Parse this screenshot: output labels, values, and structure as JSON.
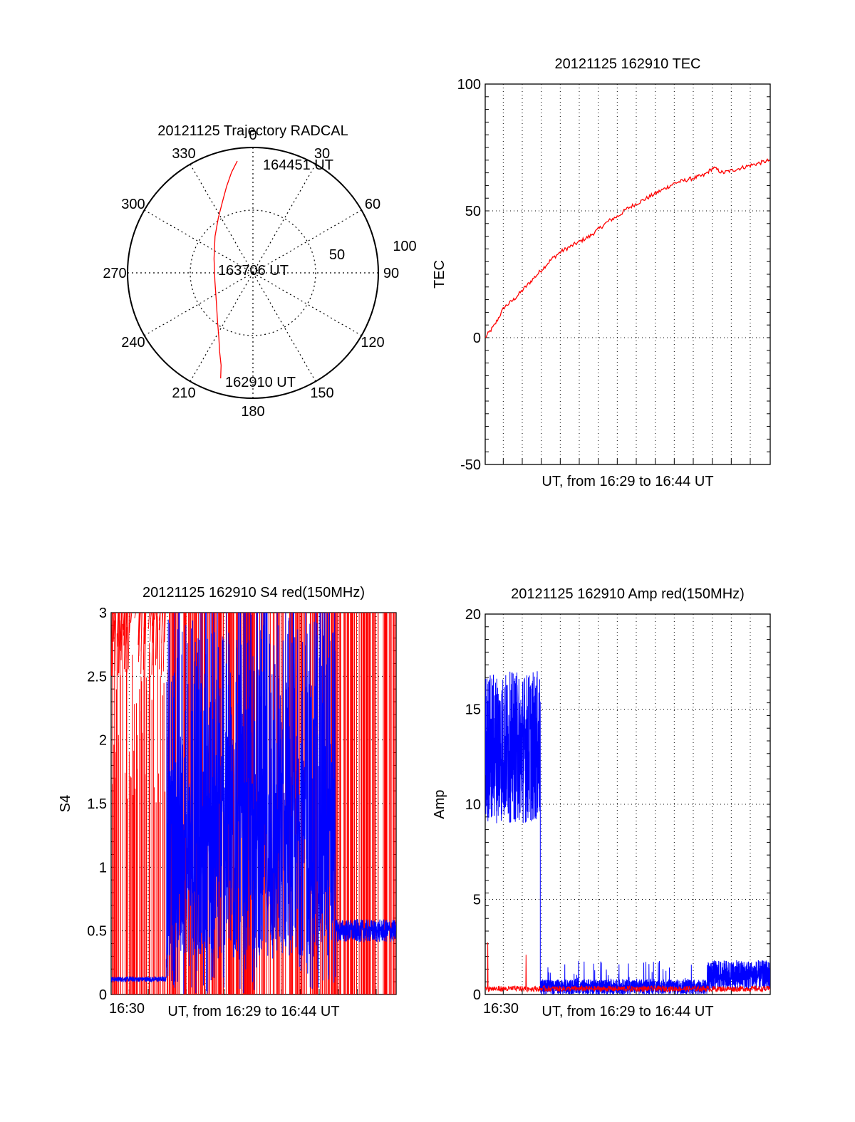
{
  "colors": {
    "axis": "#000000",
    "grid": "#000000",
    "red": "#ff0000",
    "blue": "#0000ff",
    "background": "#ffffff"
  },
  "chart_data": [
    {
      "id": "trajectory",
      "type": "polar",
      "title": "20121125 Trajectory RADCAL",
      "angle_labels": [
        "0",
        "30",
        "60",
        "90",
        "120",
        "150",
        "180",
        "210",
        "240",
        "270",
        "300",
        "330"
      ],
      "radial_tick_labels": [
        "50",
        "100"
      ],
      "radial_range": [
        0,
        100
      ],
      "grid": true,
      "annotations": [
        "164451 UT",
        "163706 UT",
        "162910 UT"
      ],
      "series": [
        {
          "color": "red",
          "points": [
            {
              "az": 197,
              "r": 88
            },
            {
              "az": 199,
              "r": 78
            },
            {
              "az": 203,
              "r": 68
            },
            {
              "az": 208,
              "r": 58
            },
            {
              "az": 216,
              "r": 48
            },
            {
              "az": 230,
              "r": 38
            },
            {
              "az": 258,
              "r": 31
            },
            {
              "az": 290,
              "r": 33
            },
            {
              "az": 314,
              "r": 42
            },
            {
              "az": 328,
              "r": 52
            },
            {
              "az": 337,
              "r": 62
            },
            {
              "az": 343,
              "r": 72
            },
            {
              "az": 348,
              "r": 82
            },
            {
              "az": 352,
              "r": 90
            }
          ]
        }
      ]
    },
    {
      "id": "tec",
      "type": "line",
      "title": "20121125 162910 TEC",
      "xlabel": "UT, from 16:29 to 16:44 UT",
      "ylabel": "TEC",
      "xlim": [
        0,
        15
      ],
      "ylim": [
        -50,
        100
      ],
      "yticks": [
        "-50",
        "0",
        "50",
        "100"
      ],
      "grid": true,
      "series": [
        {
          "color": "red",
          "x": [
            0,
            0.5,
            1,
            1.5,
            2,
            2.5,
            3,
            3.5,
            4,
            4.5,
            5,
            5.5,
            6,
            6.5,
            7,
            7.5,
            8,
            8.5,
            9,
            9.5,
            10,
            10.5,
            11,
            11.5,
            12,
            12.5,
            13,
            13.5,
            14,
            14.5,
            15
          ],
          "y": [
            0,
            5,
            12,
            15,
            19,
            23,
            27,
            31,
            34,
            36,
            38,
            40,
            43,
            46,
            48,
            51,
            53,
            55,
            57,
            59,
            61,
            62,
            63,
            64,
            67,
            65,
            66,
            67,
            68,
            69,
            70
          ]
        }
      ]
    },
    {
      "id": "s4",
      "type": "line",
      "title": "20121125 162910 S4 red(150MHz)",
      "xlabel": "UT, from 16:29 to 16:44 UT",
      "ylabel": "S4",
      "xlim": [
        0,
        15
      ],
      "ylim": [
        0,
        3
      ],
      "yticks": [
        "0",
        "0.5",
        "1",
        "1.5",
        "2",
        "2.5",
        "3"
      ],
      "xtick_labels": [
        {
          "x": 0.15,
          "label": "16:30"
        }
      ],
      "grid": true,
      "series": [
        {
          "color": "red",
          "style": "spikes",
          "baseline": [
            {
              "x": 0,
              "y": 2.8
            },
            {
              "x": 0.5,
              "y": 2.4
            },
            {
              "x": 1,
              "y": 2.0
            },
            {
              "x": 1.5,
              "y": 2.6
            },
            {
              "x": 2.5,
              "y": 2.9
            },
            {
              "x": 3,
              "y": 2.5
            }
          ]
        },
        {
          "color": "blue",
          "segments": [
            {
              "x0": 0,
              "x1": 2.9,
              "level": 0.12
            },
            {
              "x0": 2.9,
              "x1": 11.8,
              "level": 1.5,
              "noise": "high"
            },
            {
              "x0": 11.8,
              "x1": 15,
              "level": 0.5
            }
          ]
        }
      ]
    },
    {
      "id": "amp",
      "type": "line",
      "title": "20121125 162910 Amp red(150MHz)",
      "xlabel": "UT, from 16:29 to 16:44 UT",
      "ylabel": "Amp",
      "xlim": [
        0,
        15
      ],
      "ylim": [
        0,
        20
      ],
      "yticks": [
        "0",
        "5",
        "10",
        "15",
        "20"
      ],
      "xtick_labels": [
        {
          "x": 0.15,
          "label": "16:30"
        }
      ],
      "grid": true,
      "series": [
        {
          "color": "red",
          "segments": [
            {
              "x0": 0,
              "x1": 15,
              "level": 0.3
            }
          ]
        },
        {
          "color": "blue",
          "segments": [
            {
              "x0": 0,
              "x1": 2.9,
              "level": 13,
              "spread": 4
            },
            {
              "x0": 2.9,
              "x1": 11.7,
              "level": 0.4,
              "spread": 0.4
            },
            {
              "x0": 11.7,
              "x1": 15,
              "level": 1.0,
              "spread": 0.8
            }
          ]
        }
      ]
    }
  ]
}
